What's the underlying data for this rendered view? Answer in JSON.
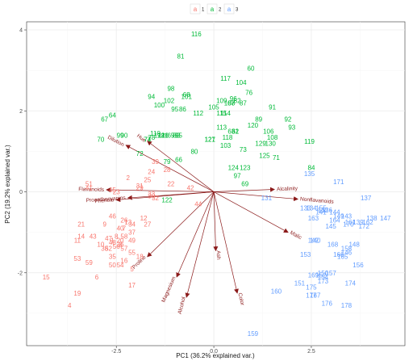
{
  "chart_data": {
    "type": "scatter",
    "xlabel": "PC1 (36.2% explained var.)",
    "ylabel": "PC2 (19.2% explained var.)",
    "xlim": [
      -4.8,
      4.9
    ],
    "ylim": [
      -3.8,
      4.2
    ],
    "xticks": [
      -2.5,
      0.0,
      2.5
    ],
    "yticks": [
      -2,
      0,
      2,
      4
    ],
    "xtick_labels": [
      "-2.5",
      "0.0",
      "2.5"
    ],
    "ytick_labels": [
      "-2",
      "0",
      "2",
      "4"
    ],
    "grid": true,
    "legend": {
      "position": "top",
      "glyph": "a",
      "labels": [
        "1",
        "2",
        "3"
      ]
    },
    "colors": {
      "1": "#F8766D",
      "2": "#00BA38",
      "3": "#619CFF",
      "arrows": "#8B1A1A"
    },
    "series": [
      {
        "name": "1",
        "color": "#F8766D",
        "points": [
          [
            "1",
            -2.6,
            -1.2
          ],
          [
            "2",
            -2.2,
            0.35
          ],
          [
            "3",
            -2.4,
            -1.3
          ],
          [
            "4",
            -3.7,
            -2.8
          ],
          [
            "5",
            -2.1,
            -1.9
          ],
          [
            "6",
            -3.0,
            -2.1
          ],
          [
            "7",
            -2.3,
            -0.9
          ],
          [
            "8",
            -2.5,
            -1.1
          ],
          [
            "9",
            -2.8,
            -0.8
          ],
          [
            "10",
            -2.9,
            -1.3
          ],
          [
            "11",
            -3.5,
            -1.2
          ],
          [
            "12",
            -1.8,
            -0.65
          ],
          [
            "13",
            -2.2,
            -0.75
          ],
          [
            "14",
            -3.4,
            -1.1
          ],
          [
            "15",
            -4.3,
            -2.1
          ],
          [
            "16",
            -2.3,
            -1.7
          ],
          [
            "17",
            -2.1,
            -2.3
          ],
          [
            "18",
            -1.9,
            -1.6
          ],
          [
            "19",
            -3.5,
            -2.5
          ],
          [
            "20",
            -2.4,
            -1.2
          ],
          [
            "21",
            -3.4,
            -0.8
          ],
          [
            "22",
            -1.1,
            0.2
          ],
          [
            "23",
            -2.5,
            0.0
          ],
          [
            "24",
            -1.6,
            0.5
          ],
          [
            "25",
            -1.7,
            0.3
          ],
          [
            "26",
            -2.3,
            -0.7
          ],
          [
            "27",
            -1.7,
            -0.8
          ],
          [
            "28",
            -1.2,
            0.55
          ],
          [
            "29",
            -1.9,
            0.1
          ],
          [
            "30",
            -1.6,
            -0.1
          ],
          [
            "31",
            -1.9,
            0.15
          ],
          [
            "32",
            -1.5,
            -0.15
          ],
          [
            "33",
            -1.6,
            -0.05
          ],
          [
            "34",
            -2.1,
            -0.8
          ],
          [
            "35",
            -2.6,
            -1.6
          ],
          [
            "36",
            -2.4,
            -1.3
          ],
          [
            "37",
            -2.1,
            -1.0
          ],
          [
            "38",
            -2.8,
            -1.4
          ],
          [
            "39",
            -1.5,
            0.75
          ],
          [
            "40",
            -2.4,
            -0.9
          ],
          [
            "41",
            -3.2,
            0.1
          ],
          [
            "42",
            -0.6,
            0.1
          ],
          [
            "43",
            -3.1,
            -1.1
          ],
          [
            "44",
            -0.4,
            -0.3
          ],
          [
            "45",
            -2.6,
            0.05
          ],
          [
            "46",
            -2.6,
            -0.6
          ],
          [
            "47",
            -2.7,
            -1.15
          ],
          [
            "48",
            -2.6,
            -1.25
          ],
          [
            "49",
            -2.1,
            -1.2
          ],
          [
            "50",
            -2.6,
            -1.8
          ],
          [
            "51",
            -3.2,
            0.2
          ],
          [
            "52",
            -2.7,
            -1.4
          ],
          [
            "53",
            -3.5,
            -1.65
          ],
          [
            "54",
            -2.4,
            -1.8
          ],
          [
            "55",
            -2.1,
            -1.5
          ],
          [
            "56",
            -2.5,
            -1.35
          ],
          [
            "57",
            -2.3,
            -1.4
          ],
          [
            "58",
            -2.3,
            -1.1
          ],
          [
            "59",
            -3.2,
            -1.75
          ]
        ]
      },
      {
        "name": "2",
        "color": "#00BA38",
        "points": [
          [
            "60",
            0.95,
            3.05
          ],
          [
            "61",
            0.55,
            1.5
          ],
          [
            "62",
            0.55,
            1.5
          ],
          [
            "63",
            0.45,
            1.5
          ],
          [
            "64",
            -2.6,
            1.9
          ],
          [
            "65",
            -1.1,
            1.4
          ],
          [
            "66",
            -0.9,
            0.8
          ],
          [
            "67",
            -2.8,
            1.8
          ],
          [
            "68",
            -0.7,
            2.4
          ],
          [
            "69",
            0.8,
            0.2
          ],
          [
            "70",
            -2.9,
            1.3
          ],
          [
            "71",
            1.6,
            0.85
          ],
          [
            "72",
            -1.9,
            0.95
          ],
          [
            "73",
            0.75,
            1.05
          ],
          [
            "74",
            -1.7,
            1.3
          ],
          [
            "75",
            -1.0,
            1.4
          ],
          [
            "76",
            0.9,
            2.45
          ],
          [
            "77",
            -1.7,
            1.3
          ],
          [
            "78",
            -1.6,
            1.35
          ],
          [
            "79",
            -1.2,
            0.75
          ],
          [
            "80",
            -0.5,
            1.0
          ],
          [
            "81",
            -0.85,
            3.35
          ],
          [
            "82",
            0.6,
            2.25
          ],
          [
            "83",
            -0.95,
            1.4
          ],
          [
            "84",
            2.5,
            0.6
          ],
          [
            "85",
            -0.9,
            1.4
          ],
          [
            "86",
            -0.8,
            2.05
          ],
          [
            "87",
            0.75,
            2.2
          ],
          [
            "88",
            0.45,
            2.2
          ],
          [
            "89",
            1.15,
            1.8
          ],
          [
            "90",
            -2.3,
            1.4
          ],
          [
            "91",
            1.5,
            2.1
          ],
          [
            "92",
            1.9,
            1.8
          ],
          [
            "93",
            2.0,
            1.6
          ],
          [
            "94",
            -1.6,
            2.35
          ],
          [
            "95",
            -1.0,
            2.05
          ],
          [
            "96",
            0.5,
            2.3
          ],
          [
            "97",
            0.6,
            0.4
          ],
          [
            "98",
            -1.1,
            2.55
          ],
          [
            "99",
            -2.4,
            1.4
          ],
          [
            "100",
            -1.4,
            2.15
          ],
          [
            "101",
            -0.7,
            2.35
          ],
          [
            "102",
            -1.15,
            2.25
          ],
          [
            "103",
            0.3,
            1.15
          ],
          [
            "104",
            0.7,
            2.7
          ],
          [
            "105",
            0.0,
            2.1
          ],
          [
            "106",
            1.4,
            1.5
          ],
          [
            "107",
            0.4,
            2.2
          ],
          [
            "108",
            1.5,
            1.35
          ],
          [
            "109",
            0.2,
            2.25
          ],
          [
            "110",
            -1.5,
            1.45
          ],
          [
            "111",
            -1.3,
            1.4
          ],
          [
            "112",
            -0.4,
            1.95
          ],
          [
            "113",
            0.2,
            1.6
          ],
          [
            "114",
            0.3,
            1.95
          ],
          [
            "115",
            0.2,
            1.95
          ],
          [
            "116",
            -0.45,
            3.9
          ],
          [
            "117",
            0.3,
            2.8
          ],
          [
            "118",
            0.35,
            1.35
          ],
          [
            "119",
            2.45,
            1.25
          ],
          [
            "120",
            1.0,
            1.65
          ],
          [
            "121",
            -0.1,
            1.3
          ],
          [
            "122",
            -1.2,
            -0.2
          ],
          [
            "123",
            0.8,
            0.6
          ],
          [
            "124",
            0.5,
            0.6
          ],
          [
            "125",
            1.3,
            0.9
          ],
          [
            "126",
            -1.3,
            1.4
          ],
          [
            "127",
            -0.1,
            1.3
          ],
          [
            "128",
            -1.4,
            1.4
          ],
          [
            "129",
            1.2,
            1.2
          ],
          [
            "130",
            1.45,
            1.2
          ]
        ]
      },
      {
        "name": "3",
        "color": "#619CFF",
        "points": [
          [
            "131",
            1.35,
            -0.15
          ],
          [
            "132",
            2.8,
            -0.45
          ],
          [
            "133",
            2.35,
            -0.4
          ],
          [
            "134",
            2.5,
            -0.4
          ],
          [
            "135",
            2.45,
            0.45
          ],
          [
            "136",
            2.9,
            -0.45
          ],
          [
            "137",
            3.9,
            -0.15
          ],
          [
            "138",
            4.05,
            -0.65
          ],
          [
            "139",
            3.7,
            -0.75
          ],
          [
            "140",
            2.6,
            -1.2
          ],
          [
            "141",
            2.75,
            -0.5
          ],
          [
            "142",
            2.55,
            -1.2
          ],
          [
            "143",
            3.4,
            -0.6
          ],
          [
            "144",
            3.1,
            -0.5
          ],
          [
            "145",
            3.0,
            -0.85
          ],
          [
            "146",
            3.4,
            -1.5
          ],
          [
            "147",
            4.4,
            -0.65
          ],
          [
            "148",
            3.6,
            -1.3
          ],
          [
            "149",
            3.2,
            -0.6
          ],
          [
            "150",
            2.8,
            -2.0
          ],
          [
            "151",
            2.2,
            -2.25
          ],
          [
            "152",
            2.75,
            -2.05
          ],
          [
            "153",
            2.35,
            -1.55
          ],
          [
            "154",
            2.8,
            -2.1
          ],
          [
            "155",
            2.75,
            -0.4
          ],
          [
            "156",
            3.7,
            -1.8
          ],
          [
            "157",
            3.0,
            -2.0
          ],
          [
            "158",
            3.4,
            -1.4
          ],
          [
            "159",
            1.0,
            -3.5
          ],
          [
            "160",
            1.6,
            -2.45
          ],
          [
            "161",
            3.5,
            -0.75
          ],
          [
            "162",
            3.95,
            -0.75
          ],
          [
            "163",
            2.55,
            -0.65
          ],
          [
            "164",
            3.1,
            -0.7
          ],
          [
            "165",
            3.3,
            -1.6
          ],
          [
            "166",
            3.2,
            -1.55
          ],
          [
            "167",
            2.6,
            -2.55
          ],
          [
            "168",
            3.05,
            -1.3
          ],
          [
            "169",
            2.55,
            -2.05
          ],
          [
            "170",
            3.45,
            -0.8
          ],
          [
            "171",
            3.2,
            0.25
          ],
          [
            "172",
            3.85,
            -0.85
          ],
          [
            "173",
            2.8,
            -2.2
          ],
          [
            "174",
            3.5,
            -2.25
          ],
          [
            "175",
            2.5,
            -2.35
          ],
          [
            "176",
            2.9,
            -2.75
          ],
          [
            "177",
            2.5,
            -2.55
          ],
          [
            "178",
            3.4,
            -2.8
          ]
        ]
      }
    ],
    "loadings": [
      {
        "name": "Alcalinity",
        "x": 1.55,
        "y": 0.06
      },
      {
        "name": "Nonflavanoids",
        "x": 2.15,
        "y": -0.18
      },
      {
        "name": "Malic",
        "x": 1.9,
        "y": -1.0
      },
      {
        "name": "Ash",
        "x": 0.05,
        "y": -1.45
      },
      {
        "name": "Color",
        "x": 0.6,
        "y": -2.5
      },
      {
        "name": "Alcohol",
        "x": -0.7,
        "y": -2.6
      },
      {
        "name": "Magnesium",
        "x": -0.95,
        "y": -2.1
      },
      {
        "name": "Proline",
        "x": -1.7,
        "y": -1.6
      },
      {
        "name": "Hue",
        "x": -1.7,
        "y": 1.25
      },
      {
        "name": "Dilution",
        "x": -2.25,
        "y": 1.15
      },
      {
        "name": "Flavanoids",
        "x": -2.75,
        "y": 0.05
      },
      {
        "name": "Proanthocyanins",
        "x": -2.2,
        "y": -0.15
      },
      {
        "name": "Phenols",
        "x": -2.5,
        "y": -0.2
      }
    ]
  }
}
